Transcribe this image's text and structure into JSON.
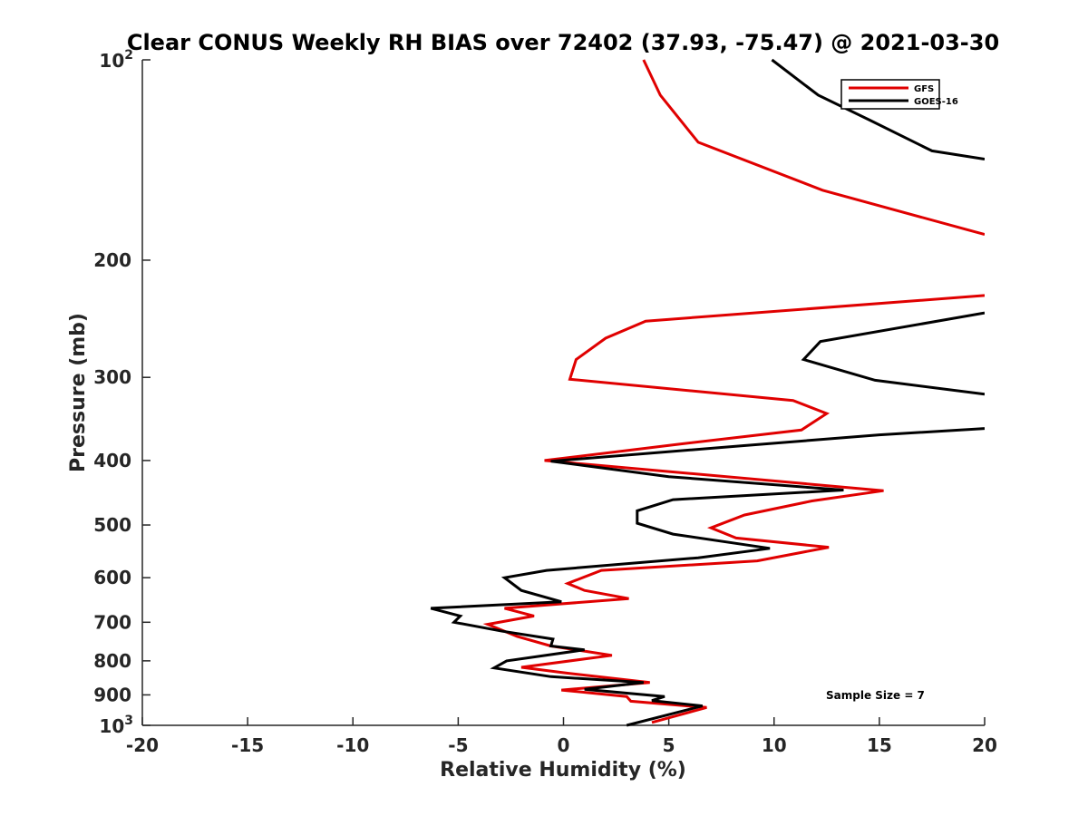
{
  "chart_data": {
    "type": "line",
    "title": "Clear CONUS Weekly RH BIAS over 72402 (37.93, -75.47) @ 2021-03-30",
    "xlabel": "Relative Humidity (%)",
    "ylabel": "Pressure (mb)",
    "xlim": [
      -20,
      20
    ],
    "ylim": [
      100,
      1000
    ],
    "yscale": "log",
    "yreverse": true,
    "xticks": [
      -20,
      -15,
      -10,
      -5,
      0,
      5,
      10,
      15,
      20
    ],
    "xtick_labels": [
      "-20",
      "-15",
      "-10",
      "-5",
      "0",
      "5",
      "10",
      "15",
      "20"
    ],
    "yticks": [
      200,
      300,
      400,
      500,
      600,
      700,
      800,
      900
    ],
    "ytick_labels": [
      "200",
      "300",
      "400",
      "500",
      "600",
      "700",
      "800",
      "900"
    ],
    "ytick_top": {
      "base": "10",
      "exp": "2"
    },
    "ytick_bottom": {
      "base": "10",
      "exp": "3"
    },
    "grid": false,
    "legend_position": "top-right",
    "annotation": "Sample Size = 7",
    "series": [
      {
        "name": "GFS",
        "color": "#e00000",
        "segments": [
          [
            [
              3.8,
              100
            ],
            [
              4.6,
              113
            ],
            [
              6.4,
              133
            ],
            [
              12.3,
              157
            ],
            [
              20,
              183
            ]
          ],
          [
            [
              20,
              226
            ],
            [
              3.9,
              247
            ],
            [
              2.0,
              262
            ],
            [
              0.6,
              282
            ],
            [
              0.3,
              302
            ],
            [
              10.9,
              325
            ],
            [
              12.5,
              340
            ],
            [
              11.3,
              360
            ],
            [
              5.5,
              378
            ],
            [
              -0.9,
              400
            ],
            [
              15.2,
              444
            ],
            [
              11.8,
              460
            ],
            [
              8.6,
              483
            ],
            [
              7.0,
              505
            ],
            [
              8.2,
              523
            ],
            [
              12.6,
              540
            ],
            [
              9.2,
              566
            ],
            [
              1.8,
              585
            ],
            [
              0.2,
              612
            ],
            [
              1.0,
              627
            ],
            [
              3.1,
              645
            ],
            [
              -2.8,
              667
            ],
            [
              -1.4,
              685
            ],
            [
              -3.6,
              705
            ],
            [
              -2.2,
              735
            ],
            [
              -0.6,
              760
            ],
            [
              2.3,
              785
            ],
            [
              -2.0,
              818
            ],
            [
              0.2,
              835
            ],
            [
              4.1,
              862
            ],
            [
              -0.1,
              885
            ],
            [
              3.0,
              905
            ],
            [
              3.2,
              920
            ],
            [
              6.8,
              940
            ],
            [
              4.2,
              990
            ]
          ]
        ]
      },
      {
        "name": "GOES-16",
        "color": "#000000",
        "segments": [
          [
            [
              9.9,
              100
            ],
            [
              12.1,
              113
            ],
            [
              14.5,
              123
            ],
            [
              17.5,
              137
            ],
            [
              20,
              141
            ]
          ],
          [
            [
              20,
              240
            ],
            [
              12.2,
              265
            ],
            [
              11.4,
              282
            ],
            [
              14.8,
              303
            ],
            [
              20,
              318
            ]
          ],
          [
            [
              20,
              358
            ],
            [
              15.0,
              366
            ],
            [
              8.5,
              380
            ],
            [
              -0.6,
              401
            ],
            [
              5.0,
              423
            ],
            [
              13.3,
              443
            ],
            [
              5.2,
              458
            ],
            [
              3.5,
              476
            ],
            [
              3.5,
              497
            ],
            [
              5.2,
              516
            ],
            [
              9.8,
              542
            ],
            [
              6.4,
              560
            ],
            [
              -0.8,
              585
            ],
            [
              -2.8,
              600
            ],
            [
              -2.0,
              627
            ],
            [
              -0.1,
              652
            ],
            [
              -6.3,
              667
            ],
            [
              -4.9,
              685
            ],
            [
              -5.2,
              700
            ],
            [
              -2.9,
              722
            ],
            [
              -0.5,
              742
            ],
            [
              -0.6,
              760
            ],
            [
              1.0,
              770
            ],
            [
              -2.7,
              800
            ],
            [
              -3.3,
              820
            ],
            [
              -0.6,
              845
            ],
            [
              3.8,
              862
            ],
            [
              1.0,
              883
            ],
            [
              4.8,
              905
            ],
            [
              4.2,
              918
            ],
            [
              6.6,
              935
            ],
            [
              3.0,
              1000
            ]
          ]
        ]
      }
    ]
  }
}
